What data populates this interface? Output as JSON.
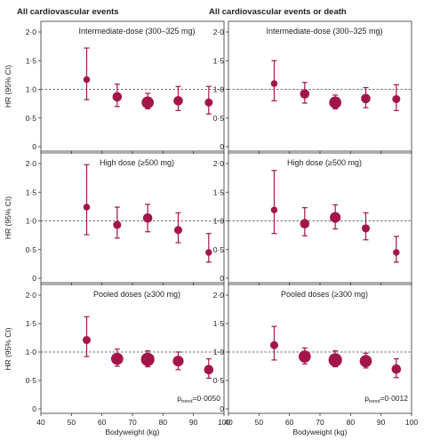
{
  "chart_data": {
    "type": "scatter",
    "column_titles": [
      "All cardiovascular events",
      "All cardiovascular events or death"
    ],
    "ylabel": "HR (95% CI)",
    "xlabel": "Bodyweight (kg)",
    "xlim": [
      40,
      100
    ],
    "ylim": [
      0,
      2
    ],
    "xticks": [
      40,
      50,
      60,
      70,
      80,
      90,
      100
    ],
    "yticks": [
      0,
      0.5,
      1.0,
      1.5,
      2.0
    ],
    "ytick_labels": [
      "0",
      "0·5",
      "1·0",
      "1·5",
      "2·0"
    ],
    "xtick_labels": [
      "40",
      "50",
      "60",
      "70",
      "80",
      "90",
      "100"
    ],
    "reference_line": 1.0,
    "marker_color": "#a3154a",
    "panels": [
      {
        "row": 0,
        "col": 0,
        "title": "Intermediate-dose (300–325 mg)",
        "points": [
          {
            "x": 55,
            "y": 1.17,
            "lo": 0.82,
            "hi": 1.72,
            "size": 1
          },
          {
            "x": 65,
            "y": 0.87,
            "lo": 0.7,
            "hi": 1.09,
            "size": 2
          },
          {
            "x": 75,
            "y": 0.77,
            "lo": 0.66,
            "hi": 0.93,
            "size": 3
          },
          {
            "x": 85,
            "y": 0.8,
            "lo": 0.63,
            "hi": 1.05,
            "size": 2
          },
          {
            "x": 95,
            "y": 0.77,
            "lo": 0.57,
            "hi": 1.05,
            "size": 1.5
          }
        ]
      },
      {
        "row": 0,
        "col": 1,
        "title": "Intermediate-dose (300–325 mg)",
        "points": [
          {
            "x": 55,
            "y": 1.1,
            "lo": 0.8,
            "hi": 1.5,
            "size": 1
          },
          {
            "x": 65,
            "y": 0.92,
            "lo": 0.76,
            "hi": 1.12,
            "size": 2
          },
          {
            "x": 75,
            "y": 0.77,
            "lo": 0.66,
            "hi": 0.9,
            "size": 3
          },
          {
            "x": 85,
            "y": 0.84,
            "lo": 0.68,
            "hi": 1.03,
            "size": 2
          },
          {
            "x": 95,
            "y": 0.83,
            "lo": 0.63,
            "hi": 1.08,
            "size": 1.5
          }
        ]
      },
      {
        "row": 1,
        "col": 0,
        "title": "High dose (≥500 mg)",
        "points": [
          {
            "x": 55,
            "y": 1.24,
            "lo": 0.76,
            "hi": 1.98,
            "size": 1
          },
          {
            "x": 65,
            "y": 0.93,
            "lo": 0.7,
            "hi": 1.24,
            "size": 1.5
          },
          {
            "x": 75,
            "y": 1.05,
            "lo": 0.81,
            "hi": 1.29,
            "size": 2
          },
          {
            "x": 85,
            "y": 0.84,
            "lo": 0.62,
            "hi": 1.14,
            "size": 1.5
          },
          {
            "x": 95,
            "y": 0.45,
            "lo": 0.28,
            "hi": 0.78,
            "size": 1
          }
        ]
      },
      {
        "row": 1,
        "col": 1,
        "title": "High dose (≥500 mg)",
        "points": [
          {
            "x": 55,
            "y": 1.19,
            "lo": 0.78,
            "hi": 1.88,
            "size": 1
          },
          {
            "x": 65,
            "y": 0.95,
            "lo": 0.74,
            "hi": 1.23,
            "size": 2
          },
          {
            "x": 75,
            "y": 1.06,
            "lo": 0.86,
            "hi": 1.28,
            "size": 2.5
          },
          {
            "x": 85,
            "y": 0.87,
            "lo": 0.67,
            "hi": 1.14,
            "size": 1.5
          },
          {
            "x": 95,
            "y": 0.45,
            "lo": 0.28,
            "hi": 0.73,
            "size": 1
          }
        ]
      },
      {
        "row": 2,
        "col": 0,
        "title": "Pooled doses (≥300 mg)",
        "ptrend": "p",
        "ptrend_sub": "trend",
        "ptrend_value": "=0·0050",
        "points": [
          {
            "x": 55,
            "y": 1.21,
            "lo": 0.92,
            "hi": 1.62,
            "size": 1.5
          },
          {
            "x": 65,
            "y": 0.88,
            "lo": 0.75,
            "hi": 1.05,
            "size": 3
          },
          {
            "x": 75,
            "y": 0.87,
            "lo": 0.74,
            "hi": 1.02,
            "size": 3.5
          },
          {
            "x": 85,
            "y": 0.84,
            "lo": 0.69,
            "hi": 1.0,
            "size": 2.5
          },
          {
            "x": 95,
            "y": 0.69,
            "lo": 0.54,
            "hi": 0.88,
            "size": 2
          }
        ]
      },
      {
        "row": 2,
        "col": 1,
        "title": "Pooled doses (≥300 mg)",
        "ptrend": "p",
        "ptrend_sub": "trend",
        "ptrend_value": "=0·0012",
        "points": [
          {
            "x": 55,
            "y": 1.12,
            "lo": 0.86,
            "hi": 1.45,
            "size": 1.5
          },
          {
            "x": 65,
            "y": 0.92,
            "lo": 0.79,
            "hi": 1.07,
            "size": 3
          },
          {
            "x": 75,
            "y": 0.86,
            "lo": 0.74,
            "hi": 1.02,
            "size": 3.5
          },
          {
            "x": 85,
            "y": 0.84,
            "lo": 0.72,
            "hi": 0.98,
            "size": 3
          },
          {
            "x": 95,
            "y": 0.7,
            "lo": 0.55,
            "hi": 0.88,
            "size": 2
          }
        ]
      }
    ]
  }
}
